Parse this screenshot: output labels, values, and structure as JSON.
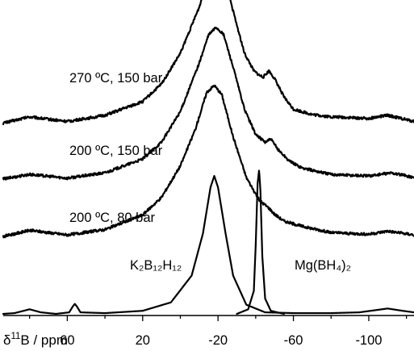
{
  "chart_data": {
    "type": "line",
    "title": "",
    "xlabel": {
      "delta": "δ",
      "sup": "11",
      "rest": "B / ppm"
    },
    "ylabel": "",
    "xlim": [
      94,
      -124
    ],
    "x_reversed": true,
    "x_ticks": [
      60,
      20,
      -20,
      -60,
      -100
    ],
    "tick_labels": [
      "60",
      "20",
      "-20",
      "-60",
      "-100"
    ],
    "y_axis_shown": false,
    "grid": false,
    "series": [
      {
        "label": "270 ºC, 150 bar",
        "baseline": 2.45,
        "points": [
          [
            94,
            0.04
          ],
          [
            80,
            0.12
          ],
          [
            60,
            0.06
          ],
          [
            40,
            0.14
          ],
          [
            20,
            0.32
          ],
          [
            10,
            0.55
          ],
          [
            0,
            0.95
          ],
          [
            -10,
            1.55
          ],
          [
            -15,
            1.95
          ],
          [
            -19,
            2.1
          ],
          [
            -23,
            1.95
          ],
          [
            -28,
            1.5
          ],
          [
            -34,
            0.95
          ],
          [
            -39,
            0.72
          ],
          [
            -42,
            0.66
          ],
          [
            -44,
            0.64
          ],
          [
            -47,
            0.72
          ],
          [
            -50,
            0.62
          ],
          [
            -55,
            0.38
          ],
          [
            -60,
            0.22
          ],
          [
            -70,
            0.15
          ],
          [
            -80,
            0.12
          ],
          [
            -100,
            0.1
          ],
          [
            -110,
            0.14
          ],
          [
            -124,
            0.06
          ]
        ]
      },
      {
        "label": "200 ºC, 150 bar",
        "baseline": 1.72,
        "points": [
          [
            94,
            0.04
          ],
          [
            80,
            0.1
          ],
          [
            60,
            0.05
          ],
          [
            40,
            0.12
          ],
          [
            20,
            0.3
          ],
          [
            10,
            0.52
          ],
          [
            0,
            0.92
          ],
          [
            -10,
            1.55
          ],
          [
            -15,
            1.92
          ],
          [
            -19,
            2.02
          ],
          [
            -23,
            1.92
          ],
          [
            -28,
            1.5
          ],
          [
            -34,
            0.95
          ],
          [
            -40,
            0.62
          ],
          [
            -45,
            0.52
          ],
          [
            -48,
            0.56
          ],
          [
            -52,
            0.42
          ],
          [
            -58,
            0.27
          ],
          [
            -65,
            0.18
          ],
          [
            -80,
            0.1
          ],
          [
            -100,
            0.08
          ],
          [
            -112,
            0.12
          ],
          [
            -124,
            0.06
          ]
        ]
      },
      {
        "label": "200 ºC, 80 bar",
        "baseline": 0.96,
        "points": [
          [
            94,
            0.05
          ],
          [
            80,
            0.13
          ],
          [
            60,
            0.07
          ],
          [
            40,
            0.14
          ],
          [
            20,
            0.33
          ],
          [
            10,
            0.56
          ],
          [
            0,
            0.97
          ],
          [
            -8,
            1.45
          ],
          [
            -14,
            1.93
          ],
          [
            -18,
            2.02
          ],
          [
            -22,
            1.9
          ],
          [
            -28,
            1.35
          ],
          [
            -35,
            0.82
          ],
          [
            -42,
            0.52
          ],
          [
            -47,
            0.42
          ],
          [
            -50,
            0.34
          ],
          [
            -55,
            0.25
          ],
          [
            -65,
            0.18
          ],
          [
            -80,
            0.1
          ],
          [
            -100,
            0.08
          ],
          [
            -110,
            0.12
          ],
          [
            -124,
            0.07
          ]
        ]
      },
      {
        "label": "K₂B₁₂H₁₂",
        "baseline": 0.0,
        "points": [
          [
            94,
            0.0
          ],
          [
            88,
            0.01
          ],
          [
            80,
            0.06
          ],
          [
            74,
            0.02
          ],
          [
            66,
            0.0
          ],
          [
            59,
            0.02
          ],
          [
            57,
            0.1
          ],
          [
            56,
            0.13
          ],
          [
            55,
            0.1
          ],
          [
            53,
            0.02
          ],
          [
            40,
            0.01
          ],
          [
            20,
            0.04
          ],
          [
            5,
            0.15
          ],
          [
            -6,
            0.5
          ],
          [
            -12,
            1.05
          ],
          [
            -16,
            1.65
          ],
          [
            -18,
            1.8
          ],
          [
            -20,
            1.65
          ],
          [
            -24,
            1.05
          ],
          [
            -28,
            0.5
          ],
          [
            -35,
            0.12
          ],
          [
            -45,
            0.02
          ],
          [
            -60,
            0.01
          ],
          [
            -80,
            0.01
          ],
          [
            -95,
            0.02
          ],
          [
            -110,
            0.07
          ],
          [
            -118,
            0.04
          ],
          [
            -124,
            0.02
          ]
        ]
      },
      {
        "label": "Mg(BH₄)₂",
        "baseline": 0.0,
        "points": [
          [
            -30,
            0.0
          ],
          [
            -36,
            0.06
          ],
          [
            -39,
            0.3
          ],
          [
            -40,
            0.9
          ],
          [
            -41,
            1.7
          ],
          [
            -41.8,
            1.88
          ],
          [
            -42.5,
            1.6
          ],
          [
            -43.5,
            0.75
          ],
          [
            -45,
            0.2
          ],
          [
            -48,
            0.04
          ],
          [
            -55,
            0.0
          ]
        ]
      }
    ]
  }
}
